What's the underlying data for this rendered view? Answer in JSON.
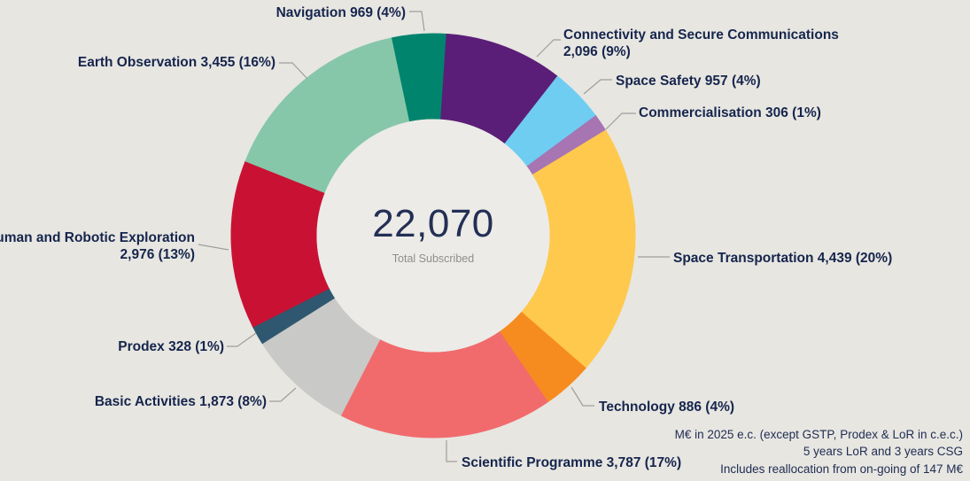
{
  "page": {
    "background_color": "#e7e6e1"
  },
  "chart_data": {
    "type": "pie",
    "subtype": "donut",
    "title": "",
    "legend_position": "callout-labels",
    "start_angle_deg": -12,
    "direction": "clockwise",
    "center": {
      "value": "22,070",
      "caption": "Total Subscribed"
    },
    "slices": [
      {
        "name": "Navigation",
        "value": 969,
        "pct": "4%",
        "color": "#00846d",
        "label_lines": [
          "Navigation 969 (4%)"
        ]
      },
      {
        "name": "Connectivity and Secure Communications",
        "value": 2096,
        "pct": "9%",
        "color": "#5b1e78",
        "label_lines": [
          "Connectivity and Secure Communications",
          "2,096 (9%)"
        ]
      },
      {
        "name": "Space Safety",
        "value": 957,
        "pct": "4%",
        "color": "#6fcdf2",
        "label_lines": [
          "Space Safety 957 (4%)"
        ]
      },
      {
        "name": "Commercialisation",
        "value": 306,
        "pct": "1%",
        "color": "#a675b2",
        "label_lines": [
          "Commercialisation 306 (1%)"
        ]
      },
      {
        "name": "Space Transportation",
        "value": 4439,
        "pct": "20%",
        "color": "#ffc94e",
        "label_lines": [
          "Space Transportation 4,439 (20%)"
        ]
      },
      {
        "name": "Technology",
        "value": 886,
        "pct": "4%",
        "color": "#f68c1f",
        "label_lines": [
          "Technology 886 (4%)"
        ]
      },
      {
        "name": "Scientific Programme",
        "value": 3787,
        "pct": "17%",
        "color": "#f16b6d",
        "label_lines": [
          "Scientific Programme 3,787 (17%)"
        ]
      },
      {
        "name": "Basic Activities",
        "value": 1873,
        "pct": "8%",
        "color": "#c9c9c8",
        "label_lines": [
          "Basic Activities 1,873 (8%)"
        ]
      },
      {
        "name": "Prodex",
        "value": 328,
        "pct": "1%",
        "color": "#2f5870",
        "label_lines": [
          "Prodex 328 (1%)"
        ]
      },
      {
        "name": "Human and Robotic Exploration",
        "value": 2976,
        "pct": "13%",
        "color": "#c91233",
        "label_lines": [
          "Human and Robotic Exploration",
          "2,976 (13%)"
        ]
      },
      {
        "name": "Earth Observation",
        "value": 3455,
        "pct": "16%",
        "color": "#86c7a9",
        "label_lines": [
          "Earth Observation 3,455 (16%)"
        ]
      }
    ]
  },
  "colors": {
    "background": "#e7e6e1",
    "donut_hole": "#ecebe7",
    "label_text": "#16254d",
    "center_value_text": "#232f55",
    "center_caption_text": "#8e8e8c",
    "leader_line": "#9e9e9c",
    "footnote_text": "#1f2c52"
  },
  "footnotes": [
    "M€ in 2025 e.c. (except GSTP, Prodex & LoR in c.e.c.)",
    "5 years LoR and 3 years CSG",
    "Includes reallocation from on-going of 147 M€"
  ]
}
